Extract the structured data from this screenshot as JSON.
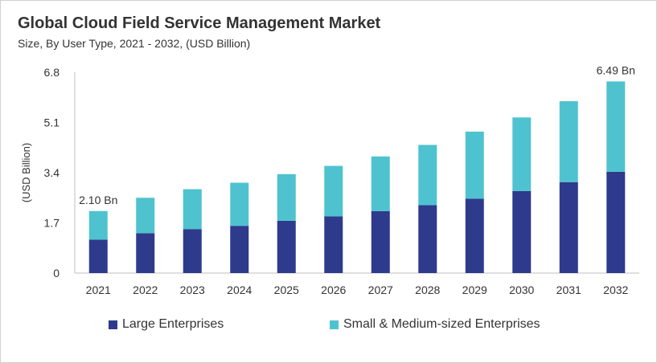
{
  "header": {
    "title": "Global Cloud Field Service Management Market",
    "subtitle": "Size, By User Type, 2021 - 2032, (USD Billion)"
  },
  "chart_data": {
    "type": "bar",
    "stacked": true,
    "categories": [
      "2021",
      "2022",
      "2023",
      "2024",
      "2025",
      "2026",
      "2027",
      "2028",
      "2029",
      "2030",
      "2031",
      "2032"
    ],
    "series": [
      {
        "name": "Large Enterprises",
        "color": "#2e3a8c",
        "values": [
          1.13,
          1.35,
          1.49,
          1.6,
          1.77,
          1.92,
          2.1,
          2.3,
          2.52,
          2.78,
          3.08,
          3.43
        ]
      },
      {
        "name": "Small & Medium-sized Enterprises",
        "color": "#4ec3cf",
        "values": [
          0.97,
          1.2,
          1.35,
          1.46,
          1.58,
          1.71,
          1.85,
          2.04,
          2.27,
          2.49,
          2.74,
          3.06
        ]
      }
    ],
    "ylabel": "(USD Billion)",
    "ylim": [
      0,
      6.8
    ],
    "yticks": [
      "0",
      "1.7",
      "3.4",
      "5.1",
      "6.8"
    ],
    "annotations": [
      {
        "category": "2021",
        "text": "2.10 Bn"
      },
      {
        "category": "2032",
        "text": "6.49 Bn"
      }
    ],
    "grid": false,
    "legend": "bottom"
  }
}
